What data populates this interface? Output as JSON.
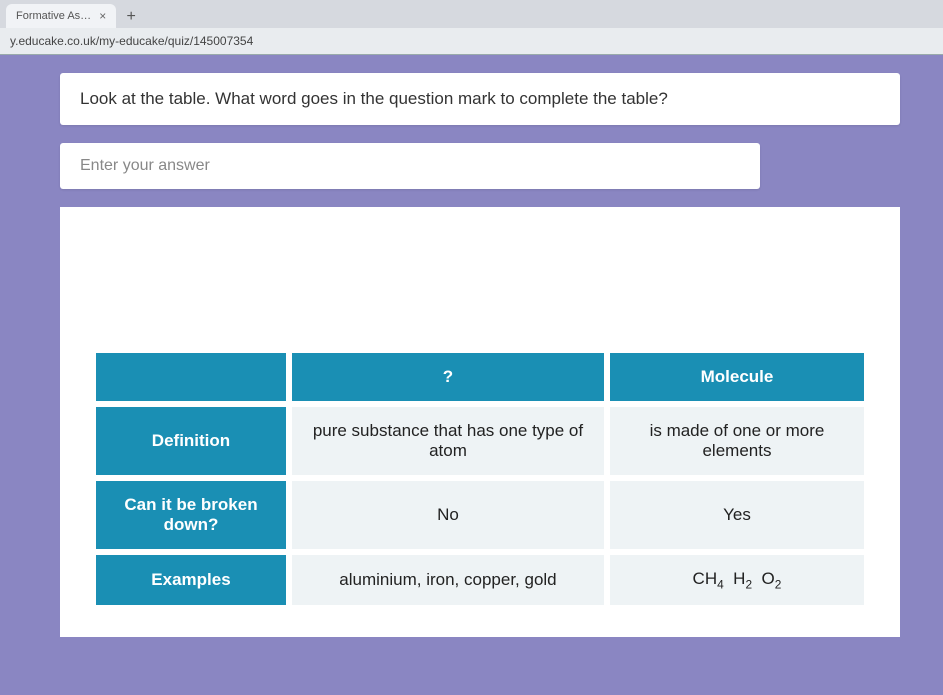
{
  "browser": {
    "tab_title": "Formative As…",
    "url": "y.educake.co.uk/my-educake/quiz/145007354"
  },
  "question": {
    "prompt": "Look at the table. What word goes in the question mark to complete the table?",
    "answer_placeholder": "Enter your answer"
  },
  "table": {
    "header_blank": "",
    "header_col1": "?",
    "header_col2": "Molecule",
    "rows": [
      {
        "label": "Definition",
        "col1": "pure substance that has one type of atom",
        "col2": "is made of one or more elements"
      },
      {
        "label": "Can it be broken down?",
        "col1": "No",
        "col2": "Yes"
      },
      {
        "label": "Examples",
        "col1": "aluminium, iron, copper, gold",
        "col2_html": "CH<sub>4</sub>&nbsp;&nbsp;H<sub>2</sub>&nbsp;&nbsp;O<sub>2</sub>"
      }
    ],
    "colors": {
      "header_bg": "#1a8fb4",
      "header_fg": "#ffffff",
      "cell_bg": "#eef3f5",
      "cell_fg": "#222222",
      "page_bg": "#8a86c2"
    }
  }
}
